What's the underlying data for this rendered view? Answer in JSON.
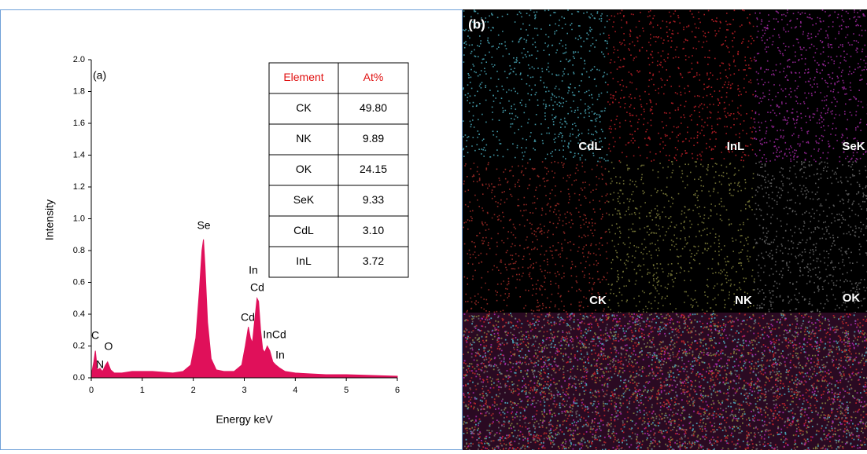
{
  "chart_data": {
    "type": "area",
    "panel_label": "(a)",
    "x_label": "Energy keV",
    "y_label": "Intensity",
    "color": "#e0105a",
    "x": [
      0,
      0.05,
      0.08,
      0.12,
      0.17,
      0.22,
      0.28,
      0.32,
      0.38,
      0.45,
      0.6,
      0.8,
      1.0,
      1.2,
      1.4,
      1.6,
      1.8,
      1.95,
      2.05,
      2.12,
      2.17,
      2.2,
      2.23,
      2.28,
      2.35,
      2.45,
      2.6,
      2.8,
      2.95,
      3.02,
      3.08,
      3.12,
      3.16,
      3.2,
      3.25,
      3.28,
      3.32,
      3.36,
      3.4,
      3.45,
      3.5,
      3.56,
      3.62,
      3.7,
      3.8,
      4.0,
      4.3,
      4.6,
      5.0,
      5.5,
      6.0
    ],
    "values": [
      0.02,
      0.1,
      0.17,
      0.05,
      0.06,
      0.04,
      0.08,
      0.1,
      0.05,
      0.03,
      0.03,
      0.04,
      0.04,
      0.04,
      0.035,
      0.03,
      0.04,
      0.08,
      0.25,
      0.55,
      0.8,
      0.87,
      0.7,
      0.35,
      0.12,
      0.05,
      0.04,
      0.04,
      0.08,
      0.2,
      0.32,
      0.25,
      0.22,
      0.35,
      0.5,
      0.48,
      0.3,
      0.18,
      0.16,
      0.2,
      0.17,
      0.1,
      0.08,
      0.06,
      0.04,
      0.03,
      0.025,
      0.02,
      0.02,
      0.015,
      0.01
    ],
    "xlim": [
      0,
      6
    ],
    "xticks": [
      0,
      1,
      2,
      3,
      4,
      5,
      6
    ],
    "ylim": [
      0,
      2
    ],
    "yticks": [
      {
        "value": 0,
        "label": "0.0"
      },
      {
        "value": 0.2,
        "label": "0.2"
      },
      {
        "value": 0.4,
        "label": "0.4"
      },
      {
        "value": 0.6,
        "label": "0.6"
      },
      {
        "value": 0.8,
        "label": "0.8"
      },
      {
        "value": 1,
        "label": "1.0"
      },
      {
        "value": 1.2,
        "label": "1.2"
      },
      {
        "value": 1.4,
        "label": "1.4"
      },
      {
        "value": 1.6,
        "label": "1.6"
      },
      {
        "value": 1.8,
        "label": "1.8"
      },
      {
        "value": 2,
        "label": "2.0"
      }
    ],
    "annotations": [
      "C",
      "N",
      "O",
      "Se",
      "In",
      "Cd",
      "Cd",
      "InCd",
      "In"
    ]
  },
  "table": {
    "header": [
      "Element",
      "At%"
    ],
    "rows": [
      [
        "CK",
        "49.80"
      ],
      [
        "NK",
        "9.89"
      ],
      [
        "OK",
        "24.15"
      ],
      [
        "SeK",
        "9.33"
      ],
      [
        "CdL",
        "3.10"
      ],
      [
        "InL",
        "3.72"
      ]
    ]
  },
  "maps": {
    "panel_label": "(b)",
    "tiles": [
      {
        "label": "CdL",
        "color": "#4fb6c8"
      },
      {
        "label": "InL",
        "color": "#d0222a"
      },
      {
        "label": "SeK",
        "color": "#b02cb0"
      },
      {
        "label": "CK",
        "color": "#b0302a"
      },
      {
        "label": "NK",
        "color": "#8a8a40"
      },
      {
        "label": "OK",
        "color": "#707070"
      }
    ]
  }
}
